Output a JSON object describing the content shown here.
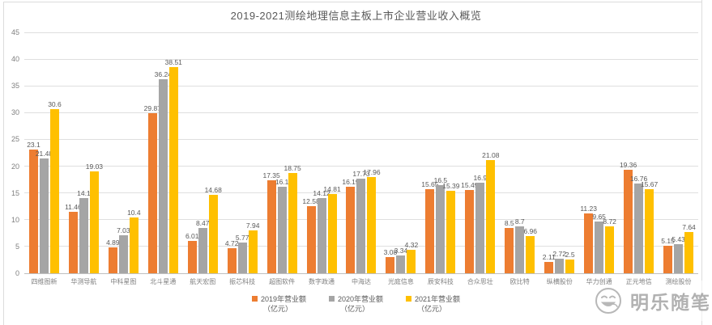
{
  "title": "2019-2021测绘地理信息主板上市企业营业收入概览",
  "chart_data": {
    "type": "bar",
    "title": "2019-2021测绘地理信息主板上市企业营业收入概览",
    "categories": [
      "四维图新",
      "华测导航",
      "中科星图",
      "北斗星通",
      "航天宏图",
      "振芯科技",
      "超图软件",
      "数字政通",
      "中海达",
      "光庭信息",
      "辰安科技",
      "合众思壮",
      "欧比特",
      "纵横股份",
      "华力创通",
      "正元地信",
      "测绘股份"
    ],
    "obscured_label_indices_by_watermark": [
      14,
      15,
      16
    ],
    "series": [
      {
        "name": "2019年营业额（亿元）",
        "color": "#ED7D31",
        "values": [
          23.1,
          11.46,
          4.89,
          29.87,
          6.01,
          4.72,
          17.35,
          12.58,
          16.19,
          3.08,
          15.65,
          15.49,
          8.5,
          2.11,
          11.23,
          19.36,
          5.15
        ]
      },
      {
        "name": "2020年营业额（亿元）",
        "color": "#A5A5A5",
        "values": [
          21.48,
          14.1,
          7.03,
          36.24,
          8.47,
          5.77,
          16.1,
          14.12,
          17.73,
          3.34,
          16.5,
          16.9,
          8.7,
          2.72,
          9.65,
          16.76,
          5.43
        ]
      },
      {
        "name": "2021年营业额（亿元）",
        "color": "#FFC000",
        "values": [
          30.6,
          19.03,
          10.4,
          38.51,
          14.68,
          7.94,
          18.75,
          14.81,
          17.96,
          4.32,
          15.39,
          21.08,
          6.96,
          2.5,
          8.72,
          15.67,
          7.64
        ]
      }
    ],
    "xlabel": "",
    "ylabel": "",
    "ylim": [
      0,
      45
    ],
    "ytick_interval": 5,
    "y_ticks": [
      0,
      5,
      10,
      15,
      20,
      25,
      30,
      35,
      40,
      45
    ],
    "grid": true,
    "legend_position": "bottom",
    "data_labels": true
  },
  "legend": {
    "items": [
      {
        "label": "2019年营业额",
        "sub": "（亿元）",
        "color": "#ED7D31"
      },
      {
        "label": "2020年营业额",
        "sub": "（亿元）",
        "color": "#A5A5A5"
      },
      {
        "label": "2021年营业额",
        "sub": "（亿元）",
        "color": "#FFC000"
      }
    ]
  },
  "watermark": {
    "text": "明乐随笔",
    "icon": "smiley-emoji"
  },
  "colors": {
    "series_2019": "#ED7D31",
    "series_2020": "#A5A5A5",
    "series_2021": "#FFC000",
    "gridline": "#DFDFDF",
    "axis_text": "#7F7F7F",
    "title_text": "#595959"
  }
}
